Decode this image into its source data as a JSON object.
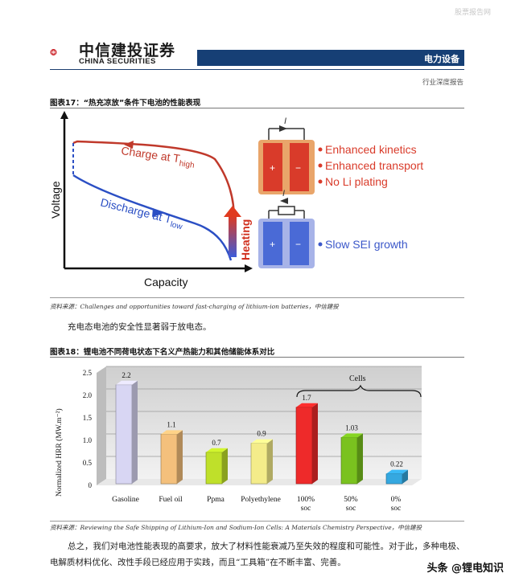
{
  "watermark": "股票报告网",
  "header": {
    "brand_cn": "中信建投证券",
    "brand_en": "CHINA SECURITIES",
    "sector": "电力设备",
    "report_type": "行业深度报告"
  },
  "figure17": {
    "title": "图表17：“热充凉放”条件下电池的性能表现",
    "diagram": {
      "y_axis_label": "Voltage",
      "x_axis_label": "Capacity",
      "charge_label": "Charge at T",
      "charge_sub": "high",
      "discharge_label": "Discharge at T",
      "discharge_sub": "low",
      "heating_label": "Heating",
      "current_symbol": "I",
      "hot_cell_features": [
        "Enhanced kinetics",
        "Enhanced transport",
        "No Li plating"
      ],
      "cold_cell_features": [
        "Slow SEI growth"
      ],
      "plus": "+",
      "minus": "−"
    },
    "source": "资料来源：Challenges and opportunities toward fast-charging of lithium-ion batteries，中信建投"
  },
  "paragraph1": "充电态电池的安全性显著弱于放电态。",
  "figure18": {
    "title": "图表18：锂电池不同荷电状态下名义产热能力和其他储能体系对比",
    "source": "资料来源：Reviewing the Safe Shipping of Lithium-Ion and Sodium-Ion Cells: A Materials Chemistry Perspective，中信建投"
  },
  "chart_data": {
    "type": "bar",
    "title": "",
    "ylabel": "Normalized HRR (MW.m⁻²)",
    "ylim": [
      0,
      2.5
    ],
    "yticks": [
      "0",
      "0.5",
      "1.0",
      "1.5",
      "2.0",
      "2.5"
    ],
    "categories": [
      "Gasoline",
      "Fuel oil",
      "Ppma",
      "Polyethylene",
      "100%\nsoc",
      "50%\nsoc",
      "0%\nsoc"
    ],
    "values": [
      2.2,
      1.1,
      0.7,
      0.9,
      1.7,
      1.03,
      0.22
    ],
    "value_labels": [
      "2.2",
      "1.1",
      "0.7",
      "0.9",
      "1.7",
      "1.03",
      "0.22"
    ],
    "bar_colors": [
      "#d8d6f3",
      "#f4c07c",
      "#bfe02a",
      "#f4ec8a",
      "#ee2a2a",
      "#7ac21f",
      "#35a8e0"
    ],
    "group_annotation": "Cells",
    "grid": true
  },
  "paragraph2": "总之，我们对电池性能表现的高要求，放大了材料性能衰减乃至失效的程度和可能性。对于此，多种电极、电解质材料优化、改性手段已经应用于实践，而且“工具箱”在不断丰富、完善。",
  "footer_brand": "头条 @锂电知识"
}
